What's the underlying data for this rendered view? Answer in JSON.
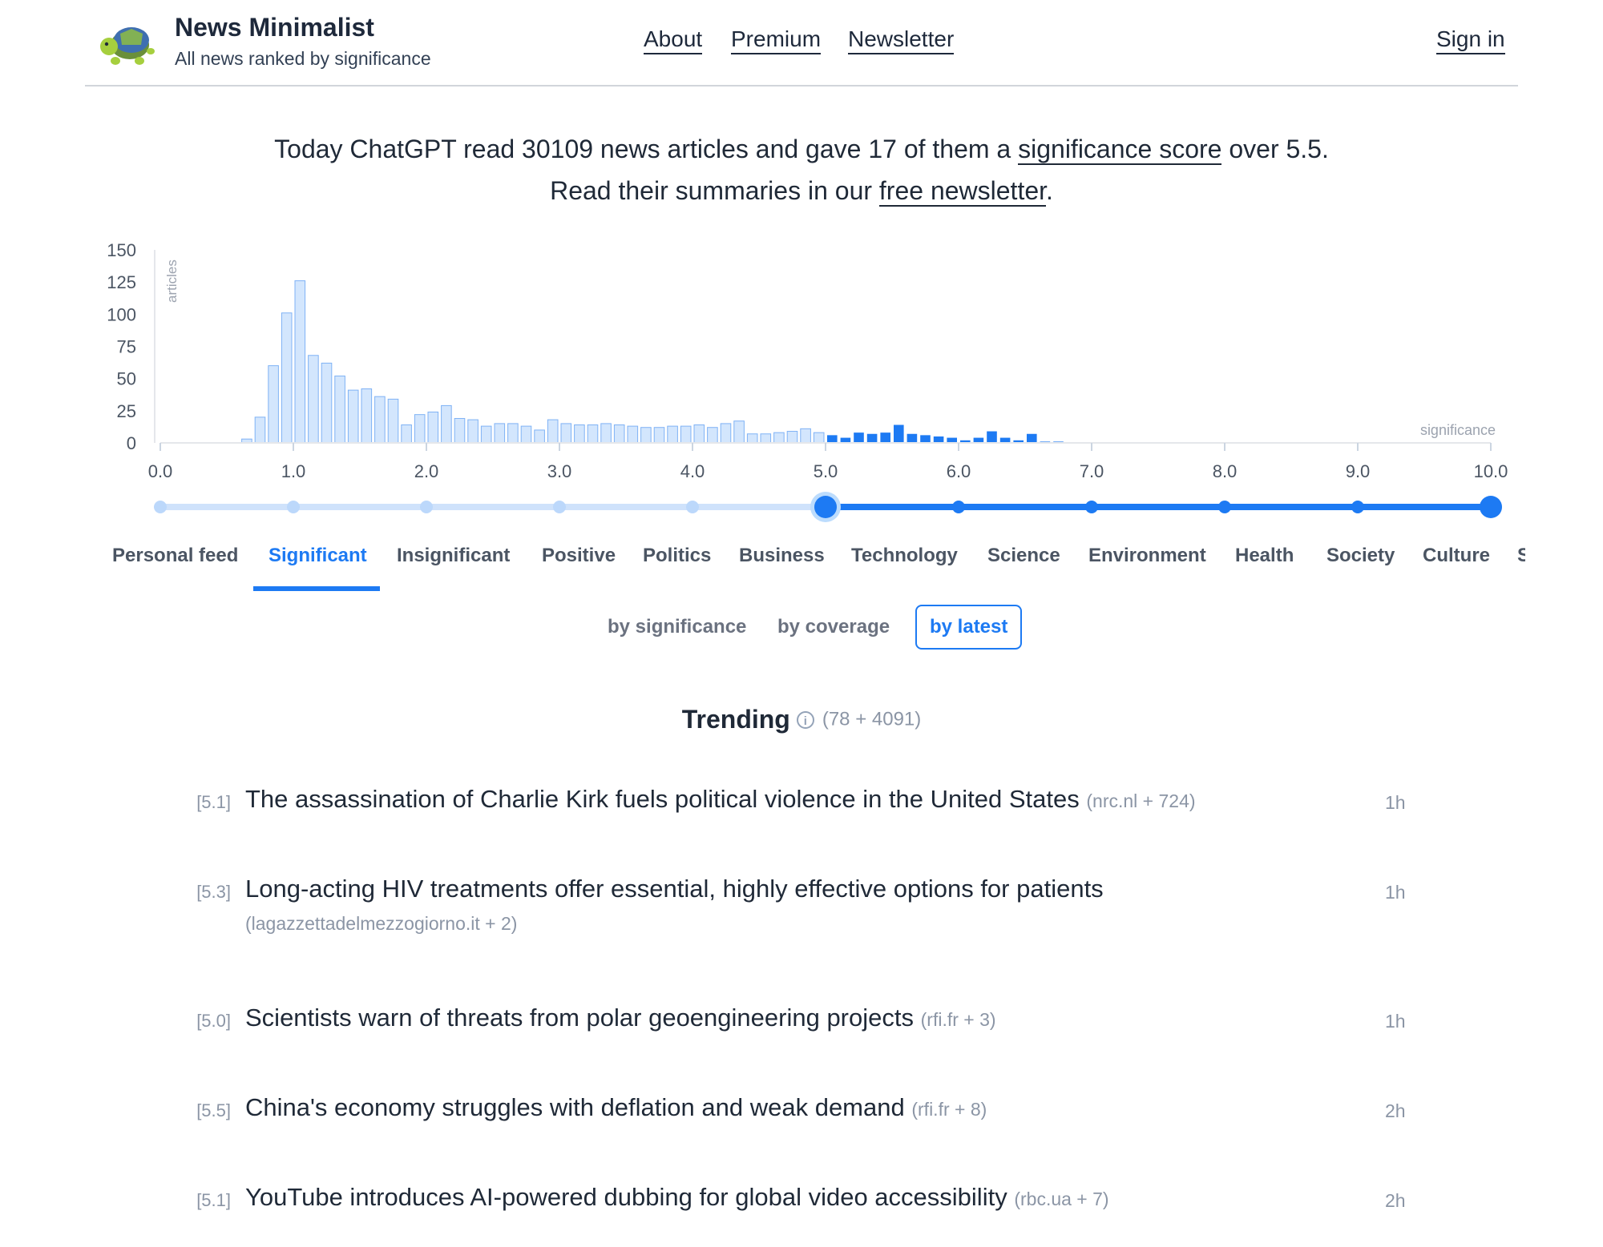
{
  "header": {
    "title": "News Minimalist",
    "subtitle": "All news ranked by significance",
    "nav": {
      "about": "About",
      "premium": "Premium",
      "newsletter": "Newsletter"
    },
    "sign_in": "Sign in"
  },
  "intro": {
    "line1_pre": "Today ChatGPT read 30109 news articles and gave 17 of them a ",
    "line1_link": "significance score",
    "line1_post": " over 5.5.",
    "line2_pre": "Read their summaries in our ",
    "line2_link": "free newsletter",
    "line2_post": "."
  },
  "chart_data": {
    "type": "bar",
    "ylabel": "articles",
    "xlabel": "significance",
    "ylim": [
      0,
      150
    ],
    "yticks": [
      0,
      25,
      50,
      75,
      100,
      125,
      150
    ],
    "xlim": [
      0,
      10
    ],
    "xticks": [
      "0.0",
      "1.0",
      "2.0",
      "3.0",
      "4.0",
      "5.0",
      "6.0",
      "7.0",
      "8.0",
      "9.0",
      "10.0"
    ],
    "bin_width": 0.1,
    "x_start": 0.6,
    "highlight_from": 5.0,
    "values": [
      3,
      20,
      60,
      101,
      126,
      68,
      62,
      52,
      41,
      42,
      36,
      34,
      14,
      22,
      24,
      29,
      19,
      18,
      13,
      15,
      15,
      13,
      10,
      18,
      15,
      14,
      14,
      15,
      14,
      13,
      12,
      12,
      13,
      13,
      14,
      12,
      15,
      17,
      7,
      7,
      8,
      9,
      11,
      8,
      6,
      4,
      8,
      7,
      8,
      14,
      7,
      6,
      5,
      4,
      2,
      4,
      9,
      4,
      2,
      7,
      1,
      1
    ]
  },
  "slider": {
    "min": 0,
    "max": 10,
    "value": 5.0
  },
  "tabs": [
    "Personal feed",
    "Significant",
    "Insignificant",
    "Positive",
    "Politics",
    "Business",
    "Technology",
    "Science",
    "Environment",
    "Health",
    "Society",
    "Culture",
    "S"
  ],
  "active_tab": "Significant",
  "sort": {
    "significance": "by significance",
    "coverage": "by coverage",
    "latest": "by latest",
    "selected": "by latest"
  },
  "trending": {
    "title": "Trending",
    "info_icon": "i",
    "count": "(78 + 4091)"
  },
  "news": [
    {
      "score": "[5.1]",
      "headline": "The assassination of Charlie Kirk fuels political violence in the United States",
      "source": "(nrc.nl + 724)",
      "age": "1h"
    },
    {
      "score": "[5.3]",
      "headline": "Long-acting HIV treatments offer essential, highly effective options for patients",
      "source": "(lagazzettadelmezzogiorno.it + 2)",
      "age": "1h"
    },
    {
      "score": "[5.0]",
      "headline": "Scientists warn of threats from polar geoengineering projects",
      "source": "(rfi.fr + 3)",
      "age": "1h"
    },
    {
      "score": "[5.5]",
      "headline": "China's economy struggles with deflation and weak demand",
      "source": "(rfi.fr + 8)",
      "age": "2h"
    },
    {
      "score": "[5.1]",
      "headline": "YouTube introduces AI-powered dubbing for global video accessibility",
      "source": "(rbc.ua + 7)",
      "age": "2h"
    }
  ],
  "colors": {
    "accent": "#1d7af3",
    "bar_light": "#d3e6fd",
    "bar_light_stroke": "#7fb2f5",
    "track_light": "#cfe2fb"
  }
}
